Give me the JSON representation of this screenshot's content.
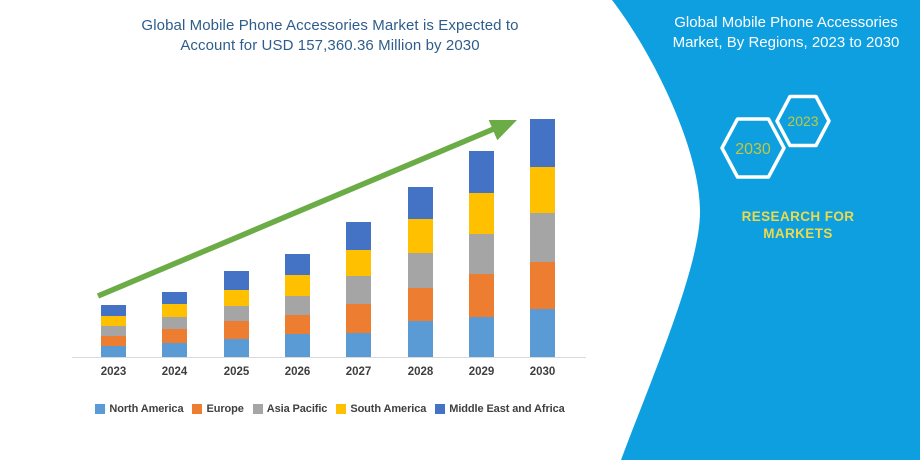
{
  "header": {
    "title_line1": "Global Mobile Phone Accessories Market is Expected to",
    "title_line2": "Account for USD 157,360.36 Million by 2030",
    "title_color": "#2E5D8C"
  },
  "sidebar": {
    "bg_color": "#0D9FDF",
    "title_line1": "Global Mobile Phone Accessories",
    "title_line2": "Market, By Regions, 2023 to 2030",
    "hexagon_badges": [
      {
        "label": "2030"
      },
      {
        "label": "2023"
      }
    ],
    "hexagon_text_color": "#C2C83E",
    "hexagon_border_color": "#FFFFFF",
    "brand_line1": "RESEARCH FOR",
    "brand_line2": "MARKETS",
    "brand_color": "#ECDA4D"
  },
  "chart_data": {
    "type": "bar",
    "stacked": true,
    "title": "Global Mobile Phone Accessories Market is Expected to Account for USD 157,360.36 Million by 2030",
    "unit": "USD Million",
    "grid": false,
    "legend_position": "bottom",
    "categories": [
      "2023",
      "2024",
      "2025",
      "2026",
      "2027",
      "2028",
      "2029",
      "2030"
    ],
    "series": [
      {
        "name": "North America",
        "color": "#5B9BD5",
        "values": [
          7270,
          9260,
          11900,
          15210,
          15870,
          23800,
          26450,
          31740
        ]
      },
      {
        "name": "Europe",
        "color": "#ED7D31",
        "values": [
          6610,
          9260,
          11900,
          12560,
          19170,
          21820,
          28430,
          31080
        ]
      },
      {
        "name": "Asia Pacific",
        "color": "#A5A5A5",
        "values": [
          6610,
          7930,
          9920,
          12560,
          18510,
          23140,
          26450,
          32400
        ]
      },
      {
        "name": "South America",
        "color": "#FFC000",
        "values": [
          6610,
          8600,
          10580,
          13890,
          17190,
          22480,
          27110,
          30420
        ]
      },
      {
        "name": "Middle East and Africa",
        "color": "#4472C4",
        "values": [
          7270,
          7930,
          12560,
          13890,
          18510,
          21160,
          27770,
          31720
        ]
      }
    ],
    "total_2030": 157360.36,
    "annotations": [
      "upward growth trend arrow"
    ],
    "arrow_color": "#6BAC47",
    "axis_color": "#D9D9D9",
    "tick_label_color": "#3F3F3F"
  }
}
